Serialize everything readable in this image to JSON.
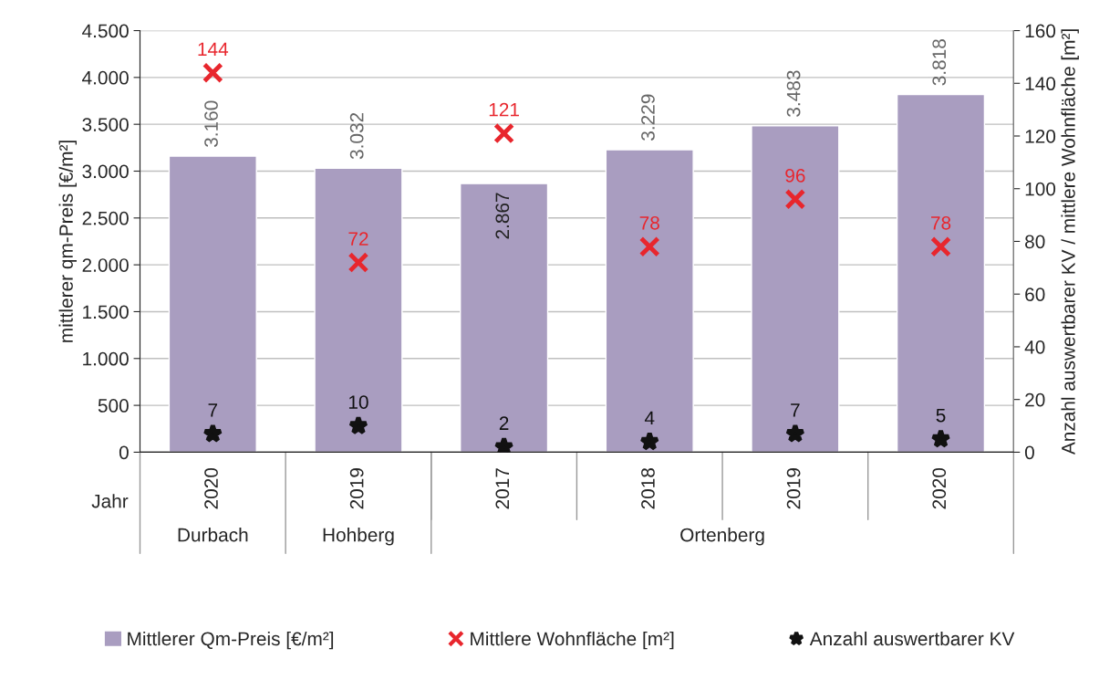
{
  "chart_data": {
    "type": "bar",
    "categories": [
      "2020",
      "2019",
      "2017",
      "2018",
      "2019",
      "2020"
    ],
    "series": [
      {
        "name": "Mittlerer Qm-Preis [€/m²]",
        "color": "#a99dc0",
        "values": [
          3160,
          3032,
          2867,
          3229,
          3483,
          3818
        ],
        "value_labels": [
          "3.160",
          "3.032",
          "2.867",
          "3.229",
          "3.483",
          "3.818"
        ]
      },
      {
        "name": "Mittlere Wohnfläche [m²]",
        "type": "scatter",
        "axis": "y2",
        "marker": "cross",
        "color": "#e8262d",
        "values": [
          144,
          72,
          121,
          78,
          96,
          78
        ]
      },
      {
        "name": "Anzahl auswertbarer KV",
        "type": "scatter",
        "axis": "y2",
        "marker": "star",
        "color": "#111111",
        "values": [
          7,
          10,
          2,
          4,
          7,
          5
        ]
      }
    ],
    "ylabel": "mittlerer qm-Preis [€/m²]",
    "y2label": "Anzahl auswertbarer KV / mittlere Wohnfläche [m²]",
    "ylim": [
      0,
      4500
    ],
    "yticks": [
      0,
      {
        "value": 500,
        "label": "500"
      },
      {
        "value": 1000,
        "label": "1.000"
      },
      {
        "value": 1500,
        "label": "1.500"
      },
      {
        "value": 2000,
        "label": "2.000"
      },
      {
        "value": 2500,
        "label": "2.500"
      },
      {
        "value": 3000,
        "label": "3.000"
      },
      {
        "value": 3500,
        "label": "3.500"
      },
      {
        "value": 4000,
        "label": "4.000"
      },
      {
        "value": 4500,
        "label": "4.500"
      }
    ],
    "y2lim": [
      0,
      160
    ],
    "y2ticks": [
      0,
      20,
      40,
      60,
      80,
      100,
      120,
      140,
      160
    ],
    "annotations": [
      "Jahr",
      "Durbach",
      "Hohberg",
      "Ortenberg"
    ],
    "data_labels": true,
    "grid": "y",
    "legend": "bottom"
  }
}
